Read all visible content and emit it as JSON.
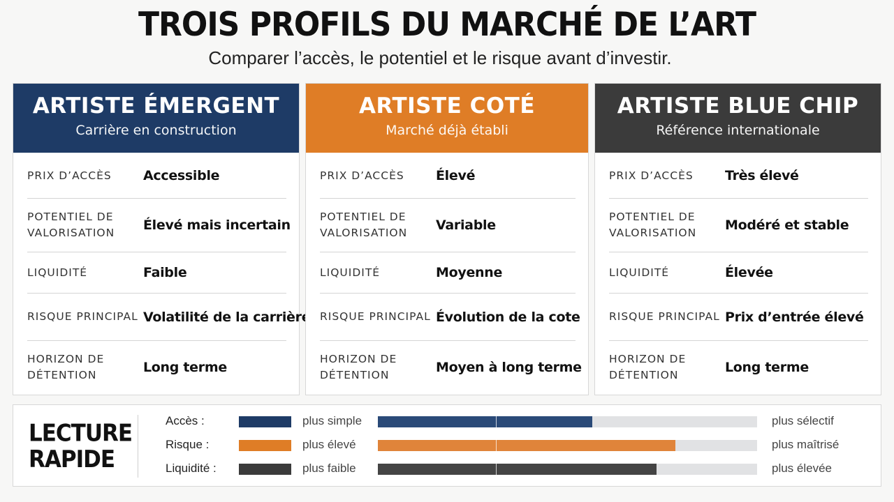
{
  "header": {
    "title": "TROIS PROFILS DU MARCHÉ DE L’ART",
    "subtitle": "Comparer l’accès, le potentiel et le risque avant d’investir."
  },
  "colors": {
    "navy": "#1e3b66",
    "orange": "#df7d26",
    "charcoal": "#3b3b3b"
  },
  "labels": {
    "prix": "PRIX D’ACCÈS",
    "potentiel_1": "POTENTIEL DE",
    "potentiel_2": "VALORISATION",
    "liquidite": "LIQUIDITÉ",
    "risque": "RISQUE PRINCIPAL",
    "horizon_1": "HORIZON DE",
    "horizon_2": "DÉTENTION"
  },
  "cards": [
    {
      "title": "ARTISTE ÉMERGENT",
      "subtitle": "Carrière en construction",
      "prix": "Accessible",
      "potentiel": "Élevé mais incertain",
      "liquidite": "Faible",
      "risque": "Volatilité de la carrière",
      "horizon": "Long terme"
    },
    {
      "title": "ARTISTE COTÉ",
      "subtitle": "Marché déjà établi",
      "prix": "Élevé",
      "potentiel": "Variable",
      "liquidite": "Moyenne",
      "risque": "Évolution de la cote",
      "horizon": "Moyen à long terme"
    },
    {
      "title": "ARTISTE BLUE CHIP",
      "subtitle": "Référence internationale",
      "prix": "Très élevé",
      "potentiel": "Modéré et stable",
      "liquidite": "Élevée",
      "risque": "Prix d’entrée élevé",
      "horizon": "Long terme"
    }
  ],
  "summary": {
    "title_1": "LECTURE",
    "title_2": "RAPIDE",
    "rows": [
      {
        "label": "Accès :",
        "left": "plus simple",
        "right": "plus sélectif",
        "level": 0.565
      },
      {
        "label": "Risque :",
        "left": "plus élevé",
        "right": "plus maîtrisé",
        "level": 0.785
      },
      {
        "label": "Liquidité :",
        "left": "plus faible",
        "right": "plus élevée",
        "level": 0.735
      }
    ]
  }
}
